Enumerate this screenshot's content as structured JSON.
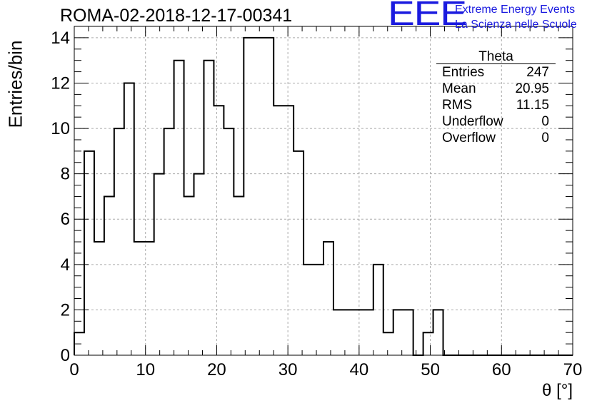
{
  "header": {
    "title": "ROMA-02-2018-12-17-00341"
  },
  "logo": {
    "mark": "EEE",
    "line1": "Extreme Energy Events",
    "line2": "La Scienza nelle Scuole"
  },
  "stats": {
    "name": "Theta",
    "rows": [
      {
        "label": "Entries",
        "value": "247"
      },
      {
        "label": "Mean",
        "value": "20.95"
      },
      {
        "label": "RMS",
        "value": "11.15"
      },
      {
        "label": "Underflow",
        "value": "0"
      },
      {
        "label": "Overflow",
        "value": "0"
      }
    ]
  },
  "colors": {
    "histogram": "#000000",
    "grid": "#aaaaaa",
    "logo": "#1a1adf"
  },
  "chart_data": {
    "type": "histogram",
    "title": "ROMA-02-2018-12-17-00341",
    "xlabel": "θ [°]",
    "ylabel": "Entries/bin",
    "xlim": [
      0,
      70
    ],
    "ylim": [
      0,
      14.5
    ],
    "bin_width": 1.4,
    "bin_start": 0,
    "x_ticks": [
      0,
      10,
      20,
      30,
      40,
      50,
      60,
      70
    ],
    "y_ticks": [
      0,
      2,
      4,
      6,
      8,
      10,
      12,
      14
    ],
    "grid": true,
    "legend": "top-right",
    "values": [
      1,
      9,
      5,
      7,
      10,
      12,
      5,
      5,
      8,
      10,
      13,
      7,
      8,
      13,
      11,
      10,
      7,
      14,
      14,
      14,
      11,
      11,
      9,
      4,
      4,
      5,
      2,
      2,
      2,
      2,
      4,
      1,
      2,
      2,
      0,
      1,
      2,
      0,
      0,
      0,
      0,
      0,
      0,
      0,
      0,
      0,
      0,
      0,
      0,
      0
    ]
  }
}
